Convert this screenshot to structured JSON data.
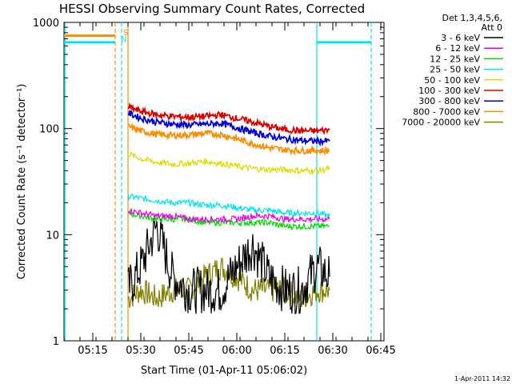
{
  "chart_data": {
    "type": "line",
    "title": "HESSI Observing Summary Count Rates, Corrected",
    "xlabel": "Start Time (01-Apr-11 05:06:02)",
    "ylabel": "Corrected Count Rate (s⁻¹ detector⁻¹)",
    "y_scale": "log",
    "ylim": [
      1,
      1000
    ],
    "xlim": [
      "05:06",
      "06:46"
    ],
    "x_ticks": [
      "05:15",
      "05:30",
      "05:45",
      "06:00",
      "06:15",
      "06:30",
      "06:45"
    ],
    "y_ticks": [
      "1",
      "10",
      "100",
      "1000"
    ],
    "legend_header": [
      "Det 1,3,4,5,6,",
      "Att 0"
    ],
    "legend_position": "right",
    "timestamp": "1-Apr-2011 14:32",
    "flag_markers": [
      {
        "label": "S",
        "color": "#ff8c00"
      },
      {
        "label": "N",
        "color": "#00e5ee"
      }
    ],
    "flag_lines": [
      {
        "time": "05:22",
        "series": "SAA start",
        "color": "#ff8c00"
      },
      {
        "time": "05:24",
        "series": "Night end",
        "color": "#00e5ee"
      },
      {
        "time": "05:26",
        "series": "data start",
        "color": "#ff8c00"
      },
      {
        "time": "06:25",
        "series": "Night start",
        "color": "#00e5ee"
      },
      {
        "time": "06:42",
        "series": "Night end",
        "color": "#00e5ee"
      }
    ],
    "series": [
      {
        "name": "3 - 6 keV",
        "color": "#000000",
        "x": [
          "05:26",
          "05:30",
          "05:35",
          "05:40",
          "05:45",
          "05:50",
          "05:55",
          "06:00",
          "06:05",
          "06:10",
          "06:15",
          "06:20",
          "06:25",
          "06:29"
        ],
        "y": [
          3,
          5,
          12,
          4,
          3,
          3,
          3,
          5,
          8,
          4,
          3,
          3,
          5,
          4
        ]
      },
      {
        "name": "6 - 12 keV",
        "color": "#ee00ee",
        "x": [
          "05:26",
          "05:30",
          "05:35",
          "05:40",
          "05:45",
          "05:50",
          "05:55",
          "06:00",
          "06:05",
          "06:10",
          "06:15",
          "06:20",
          "06:25",
          "06:29"
        ],
        "y": [
          17,
          16,
          15,
          15,
          14,
          14,
          14,
          14,
          15,
          15,
          14,
          14,
          14,
          14
        ]
      },
      {
        "name": "12 - 25 keV",
        "color": "#00dd00",
        "x": [
          "05:26",
          "05:30",
          "05:35",
          "05:40",
          "05:45",
          "05:50",
          "05:55",
          "06:00",
          "06:05",
          "06:10",
          "06:15",
          "06:20",
          "06:25",
          "06:29"
        ],
        "y": [
          16,
          15,
          14,
          14,
          14,
          13,
          13,
          13,
          13,
          13,
          12,
          12,
          12,
          12
        ]
      },
      {
        "name": "25 - 50 keV",
        "color": "#00e5ee",
        "x": [
          "05:26",
          "05:30",
          "05:35",
          "05:40",
          "05:45",
          "05:50",
          "05:55",
          "06:00",
          "06:05",
          "06:10",
          "06:15",
          "06:20",
          "06:25",
          "06:29"
        ],
        "y": [
          23,
          22,
          21,
          20,
          20,
          19,
          19,
          18,
          17,
          17,
          16,
          16,
          16,
          15
        ]
      },
      {
        "name": "50 - 100 keV",
        "color": "#dddd00",
        "x": [
          "05:26",
          "05:30",
          "05:35",
          "05:40",
          "05:45",
          "05:50",
          "05:55",
          "06:00",
          "06:05",
          "06:10",
          "06:15",
          "06:20",
          "06:25",
          "06:29"
        ],
        "y": [
          58,
          52,
          48,
          46,
          47,
          49,
          47,
          44,
          42,
          41,
          41,
          40,
          40,
          42
        ]
      },
      {
        "name": "100 - 300 keV",
        "color": "#dd0000",
        "x": [
          "05:26",
          "05:30",
          "05:35",
          "05:40",
          "05:45",
          "05:50",
          "05:55",
          "06:00",
          "06:05",
          "06:10",
          "06:15",
          "06:20",
          "06:25",
          "06:29"
        ],
        "y": [
          160,
          145,
          135,
          130,
          128,
          130,
          135,
          125,
          115,
          105,
          98,
          95,
          95,
          97
        ]
      },
      {
        "name": "300 - 800 keV",
        "color": "#0000dd",
        "x": [
          "05:26",
          "05:30",
          "05:35",
          "05:40",
          "05:45",
          "05:50",
          "05:55",
          "06:00",
          "06:05",
          "06:10",
          "06:15",
          "06:20",
          "06:25",
          "06:29"
        ],
        "y": [
          140,
          125,
          115,
          110,
          108,
          110,
          112,
          102,
          92,
          85,
          80,
          77,
          76,
          76
        ]
      },
      {
        "name": "800 - 7000 keV",
        "color": "#ff8c00",
        "x": [
          "05:26",
          "05:30",
          "05:35",
          "05:40",
          "05:45",
          "05:50",
          "05:55",
          "06:00",
          "06:05",
          "06:10",
          "06:15",
          "06:20",
          "06:25",
          "06:29"
        ],
        "y": [
          105,
          95,
          88,
          86,
          87,
          90,
          88,
          80,
          72,
          66,
          63,
          62,
          62,
          62
        ]
      },
      {
        "name": "7000 - 20000 keV",
        "color": "#808000",
        "x": [
          "05:26",
          "05:30",
          "05:35",
          "05:40",
          "05:45",
          "05:50",
          "05:55",
          "06:00",
          "06:05",
          "06:10",
          "06:15",
          "06:20",
          "06:25",
          "06:29"
        ],
        "y": [
          2.5,
          3,
          2.5,
          3,
          3,
          4,
          5,
          4,
          3,
          3,
          3,
          2.5,
          3,
          3
        ]
      }
    ],
    "night_level": 650,
    "saa_level": 750,
    "grid": false
  }
}
